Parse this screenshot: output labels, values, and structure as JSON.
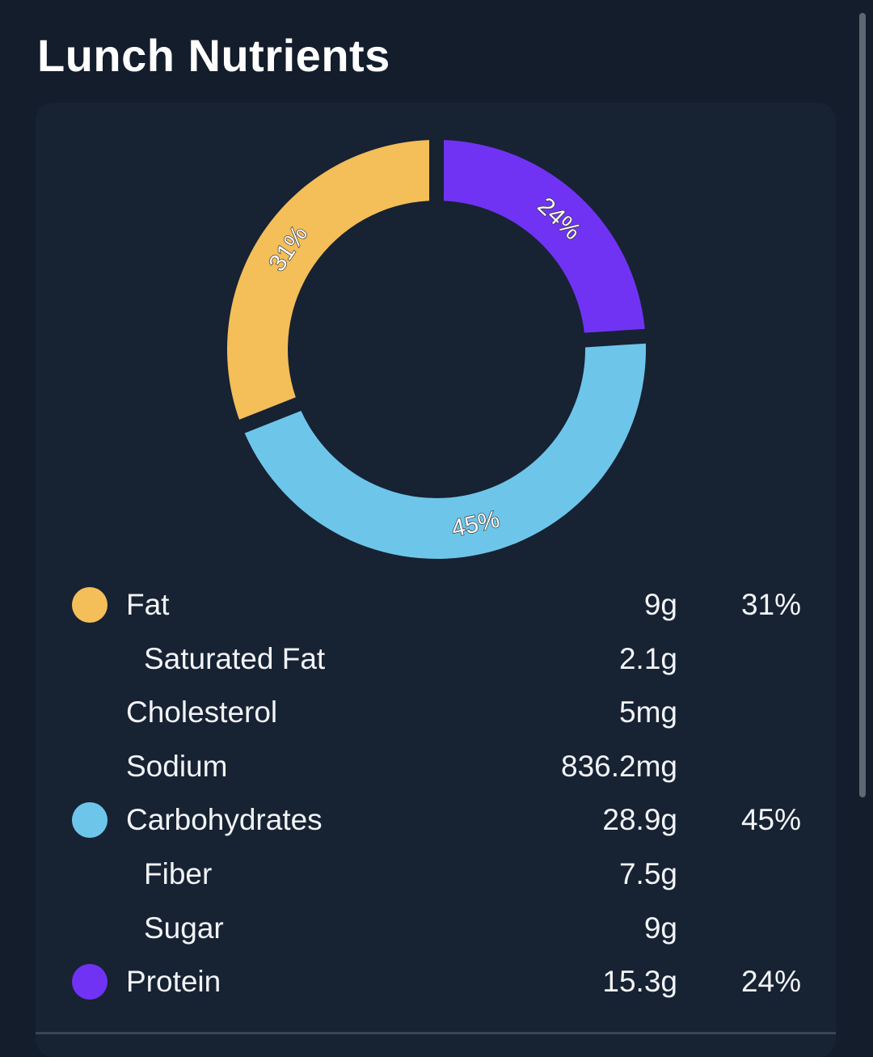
{
  "header": {
    "title": "Lunch Nutrients"
  },
  "colors": {
    "fat": "#f4be58",
    "carbohydrates": "#6dc6ea",
    "protein": "#7033f3",
    "background": "#131d2c",
    "card": "#172233"
  },
  "chart_data": {
    "type": "pie",
    "variant": "donut",
    "categories": [
      "Fat",
      "Carbohydrates",
      "Protein"
    ],
    "values": [
      31,
      45,
      24
    ],
    "labels": [
      "31%",
      "45%",
      "24%"
    ]
  },
  "nutrients": [
    {
      "name": "Fat",
      "amount": "9g",
      "percent": "31%",
      "color": "#f4be58",
      "sub": false
    },
    {
      "name": "Saturated Fat",
      "amount": "2.1g",
      "percent": "",
      "color": "",
      "sub": true
    },
    {
      "name": "Cholesterol",
      "amount": "5mg",
      "percent": "",
      "color": "",
      "sub": false
    },
    {
      "name": "Sodium",
      "amount": "836.2mg",
      "percent": "",
      "color": "",
      "sub": false
    },
    {
      "name": "Carbohydrates",
      "amount": "28.9g",
      "percent": "45%",
      "color": "#6dc6ea",
      "sub": false
    },
    {
      "name": "Fiber",
      "amount": "7.5g",
      "percent": "",
      "color": "",
      "sub": true
    },
    {
      "name": "Sugar",
      "amount": "9g",
      "percent": "",
      "color": "",
      "sub": true
    },
    {
      "name": "Protein",
      "amount": "15.3g",
      "percent": "24%",
      "color": "#7033f3",
      "sub": false
    }
  ]
}
